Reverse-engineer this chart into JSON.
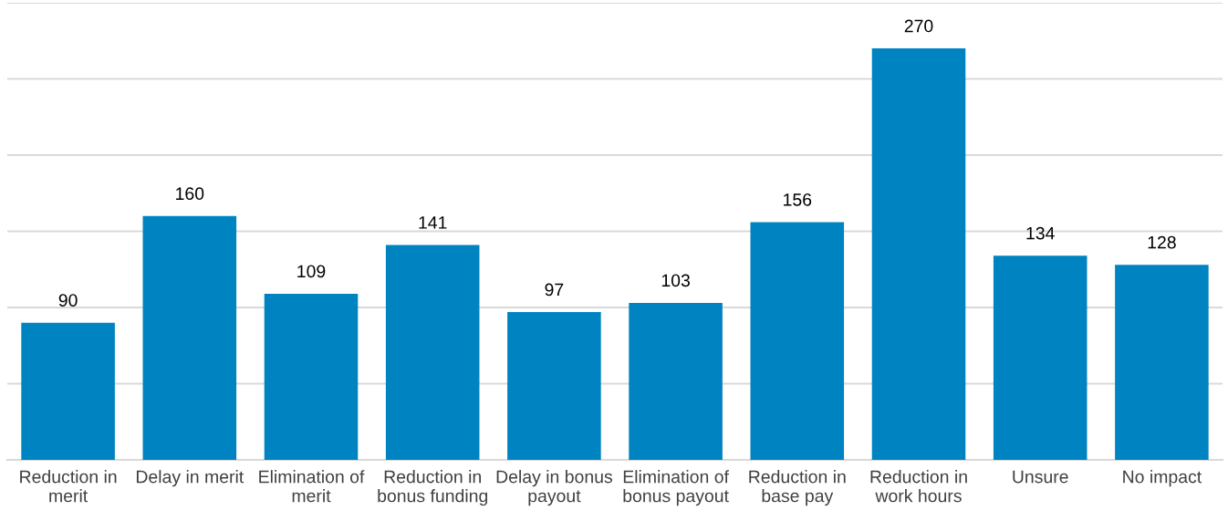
{
  "chart_data": {
    "type": "bar",
    "categories": [
      "Reduction in\nmerit",
      "Delay in merit",
      "Elimination of\nmerit",
      "Reduction in\nbonus funding",
      "Delay in bonus\npayout",
      "Elimination of\nbonus payout",
      "Reduction in\nbase pay",
      "Reduction in\nwork hours",
      "Unsure",
      "No impact"
    ],
    "values": [
      90,
      160,
      109,
      141,
      97,
      103,
      156,
      270,
      134,
      128
    ],
    "color": "#0083c1",
    "ylim": [
      0,
      300
    ],
    "yticks": [
      {
        "value": 0,
        "label": null
      },
      {
        "value": 50,
        "label": null
      },
      {
        "value": 100,
        "label": null
      },
      {
        "value": 150,
        "label": null
      },
      {
        "value": 200,
        "label": null
      },
      {
        "value": 250,
        "label": null
      },
      {
        "value": 300,
        "label": null
      }
    ],
    "tick_labels": "x",
    "grid": "y",
    "data_labels": true
  }
}
